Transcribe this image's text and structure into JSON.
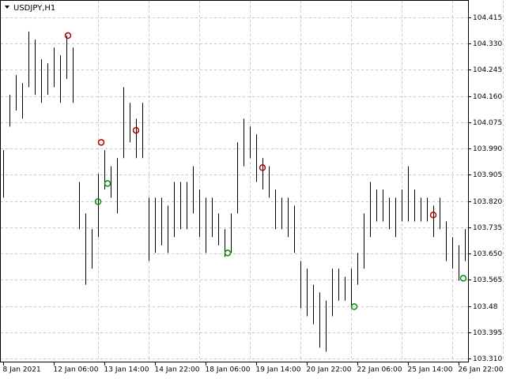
{
  "chart_data": {
    "type": "hlc_bars",
    "title": "USDJPY,H1",
    "x": [
      0,
      4,
      8,
      12,
      16,
      20,
      24,
      28,
      32,
      36,
      40,
      44,
      48,
      52,
      56,
      60,
      64,
      68,
      72,
      76,
      80,
      84,
      88,
      92,
      96,
      100,
      104,
      108,
      112,
      116,
      120,
      124,
      128,
      132,
      136,
      140,
      144,
      148,
      152,
      156,
      160,
      164,
      168,
      172,
      176,
      180,
      184,
      188,
      192,
      196,
      200,
      204,
      208,
      212,
      216,
      220,
      224,
      228,
      232,
      236,
      240,
      244,
      248,
      252,
      256,
      260,
      264,
      268,
      272,
      276,
      280,
      284,
      288,
      292
    ],
    "high": [
      103.985,
      104.164,
      104.228,
      104.202,
      104.369,
      104.343,
      104.279,
      104.266,
      104.317,
      104.292,
      104.356,
      104.317,
      103.882,
      103.78,
      103.729,
      103.908,
      103.985,
      103.933,
      103.959,
      104.189,
      104.138,
      104.087,
      104.138,
      103.831,
      103.831,
      103.831,
      103.805,
      103.882,
      103.882,
      103.882,
      103.933,
      103.857,
      103.831,
      103.831,
      103.78,
      103.729,
      103.78,
      104.01,
      104.087,
      104.061,
      104.036,
      103.959,
      103.933,
      103.857,
      103.831,
      103.831,
      103.805,
      103.626,
      103.601,
      103.549,
      103.524,
      103.498,
      103.601,
      103.601,
      103.575,
      103.601,
      103.652,
      103.78,
      103.882,
      103.857,
      103.857,
      103.831,
      103.831,
      103.857,
      103.933,
      103.857,
      103.831,
      103.831,
      103.805,
      103.831,
      103.754,
      103.703,
      103.677,
      103.729
    ],
    "low": [
      103.831,
      104.061,
      104.113,
      104.087,
      104.189,
      104.164,
      104.138,
      104.164,
      104.189,
      104.138,
      104.215,
      104.138,
      103.729,
      103.549,
      103.601,
      103.703,
      103.857,
      103.831,
      103.78,
      103.959,
      104.01,
      103.959,
      103.959,
      103.626,
      103.652,
      103.677,
      103.652,
      103.703,
      103.729,
      103.729,
      103.78,
      103.703,
      103.652,
      103.703,
      103.677,
      103.639,
      103.652,
      103.78,
      103.933,
      103.959,
      103.882,
      103.857,
      103.831,
      103.729,
      103.729,
      103.703,
      103.652,
      103.473,
      103.447,
      103.421,
      103.345,
      103.332,
      103.447,
      103.498,
      103.498,
      103.473,
      103.549,
      103.601,
      103.703,
      103.754,
      103.754,
      103.729,
      103.703,
      103.754,
      103.754,
      103.754,
      103.754,
      103.754,
      103.703,
      103.729,
      103.626,
      103.601,
      103.562,
      103.626
    ],
    "color": "#000000",
    "sell_signals": {
      "color": "#b00000",
      "x": [
        41,
        62,
        84,
        164,
        272
      ],
      "y": [
        104.356,
        104.01,
        104.049,
        103.928,
        103.775
      ]
    },
    "buy_signals": {
      "color": "#0a8a0a",
      "x": [
        60,
        66,
        142,
        222,
        291
      ],
      "y": [
        103.818,
        103.877,
        103.652,
        103.478,
        103.57
      ]
    },
    "xlim": [
      0,
      294
    ],
    "xticks": [
      {
        "value": 0,
        "label": "8 Jan 2021"
      },
      {
        "value": 32,
        "label": "12 Jan 06:00"
      },
      {
        "value": 64,
        "label": "13 Jan 14:00"
      },
      {
        "value": 96,
        "label": "14 Jan 22:00"
      },
      {
        "value": 128,
        "label": "18 Jan 06:00"
      },
      {
        "value": 160,
        "label": "19 Jan 14:00"
      },
      {
        "value": 192,
        "label": "20 Jan 22:00"
      },
      {
        "value": 224,
        "label": "22 Jan 06:00"
      },
      {
        "value": 256,
        "label": "25 Jan 14:00"
      },
      {
        "value": 288,
        "label": "26 Jan 22:00"
      }
    ],
    "ylim": [
      103.3,
      104.466
    ],
    "yticks": [
      104.415,
      {
        "value": 104.33,
        "label": "104.330"
      },
      104.245,
      {
        "value": 104.16,
        "label": "104.160"
      },
      104.075,
      {
        "value": 103.99,
        "label": "103.990"
      },
      103.905,
      {
        "value": 103.82,
        "label": "103.820"
      },
      103.735,
      {
        "value": 103.65,
        "label": "103.650"
      },
      103.565,
      103.48,
      103.395,
      {
        "value": 103.31,
        "label": "103.310"
      }
    ],
    "grid": true
  }
}
